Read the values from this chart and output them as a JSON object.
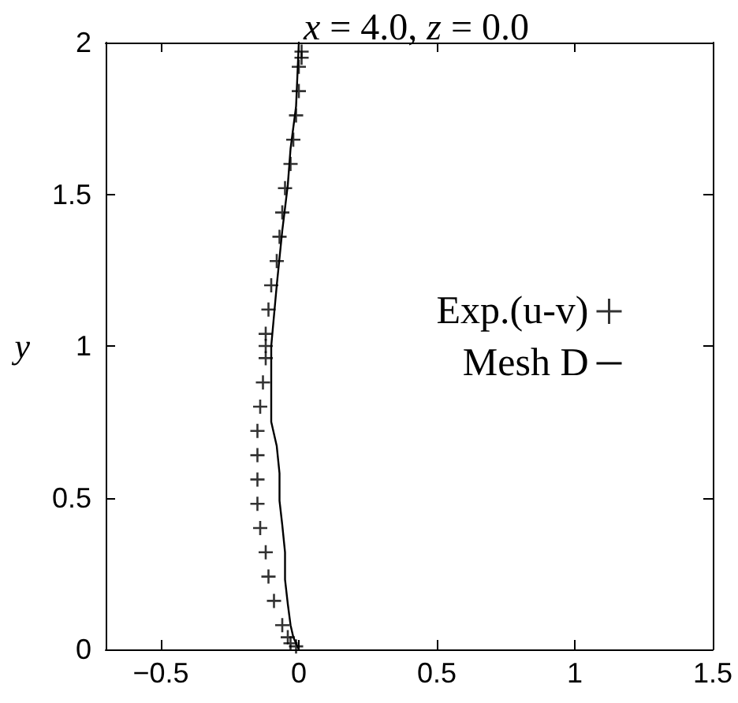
{
  "chart_data": {
    "type": "scatter",
    "title": "x = 4.0, z = 0.0",
    "ylabel": "y",
    "xlim": [
      -0.7,
      1.5
    ],
    "xticks": [
      -0.5,
      0,
      0.5,
      1,
      1.5
    ],
    "ylim": [
      0,
      2
    ],
    "yticks": [
      0,
      0.5,
      1,
      1.5,
      2
    ],
    "grid": false,
    "legend": "right",
    "marker": "cross",
    "series": [
      {
        "name": "Exp.(u-v)",
        "color": "#000000",
        "x": [
          0.01,
          0.01,
          0.0,
          0.0,
          -0.01,
          -0.02,
          -0.03,
          -0.05,
          -0.06,
          -0.07,
          -0.08,
          -0.1,
          -0.11,
          -0.12,
          -0.12,
          -0.12,
          -0.13,
          -0.14,
          -0.15,
          -0.15,
          -0.15,
          -0.15,
          -0.14,
          -0.12,
          -0.11,
          -0.09,
          -0.06,
          -0.04,
          -0.03,
          -0.01
        ],
        "values": [
          1.97,
          1.95,
          1.92,
          1.84,
          1.76,
          1.68,
          1.6,
          1.52,
          1.44,
          1.36,
          1.28,
          1.2,
          1.12,
          1.04,
          1.0,
          0.96,
          0.88,
          0.8,
          0.72,
          0.64,
          0.56,
          0.48,
          0.4,
          0.32,
          0.24,
          0.16,
          0.08,
          0.04,
          0.02,
          0.01
        ]
      },
      {
        "name": "Mesh D",
        "type": "line",
        "marker": "none",
        "line_style": "solid",
        "color": "#000000",
        "x": [
          0.0,
          -0.01,
          -0.03,
          -0.04,
          -0.06,
          -0.08,
          -0.1,
          -0.1,
          -0.1,
          -0.1,
          -0.08,
          -0.07,
          -0.07,
          -0.06,
          -0.05,
          -0.05,
          -0.04,
          -0.03,
          -0.02,
          0.0
        ],
        "values": [
          2.0,
          1.79,
          1.65,
          1.53,
          1.38,
          1.2,
          1.0,
          0.93,
          0.84,
          0.75,
          0.67,
          0.58,
          0.49,
          0.41,
          0.32,
          0.23,
          0.15,
          0.08,
          0.04,
          0.0
        ]
      }
    ]
  }
}
